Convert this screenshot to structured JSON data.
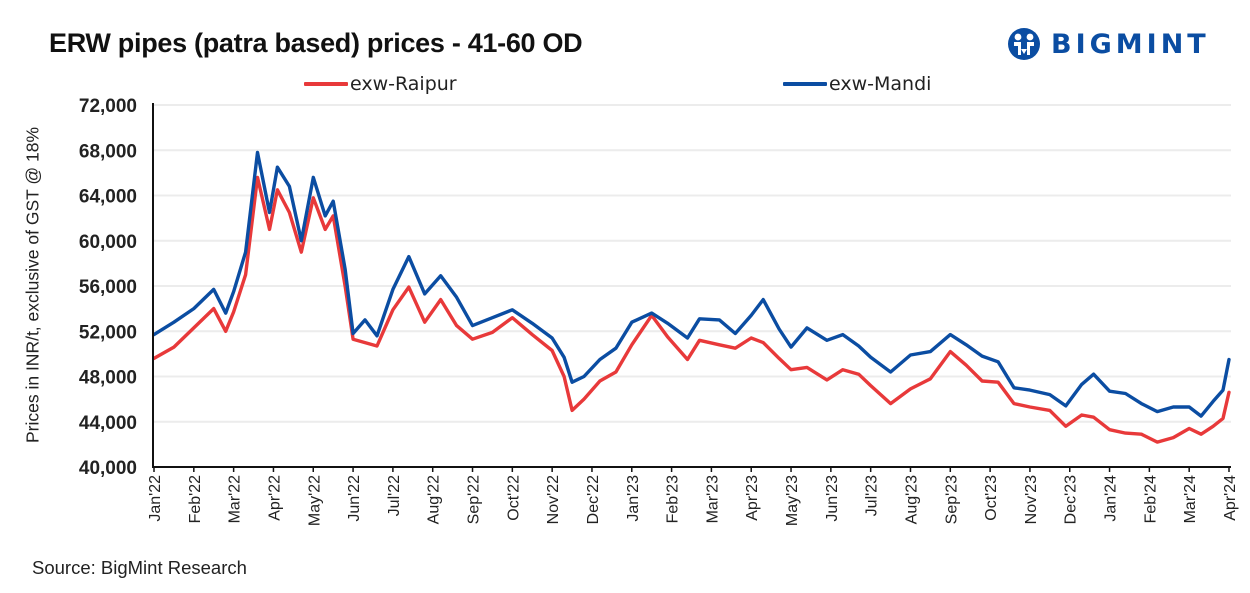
{
  "header": {
    "title": "ERW pipes (patra based) prices - 41-60 OD",
    "logo_text": "BIGMINT",
    "logo_color": "#0b4da2"
  },
  "footer": {
    "source": "Source: BigMint Research"
  },
  "chart_data": {
    "type": "line",
    "title": "ERW pipes (patra based) prices - 41-60 OD",
    "xlabel": "",
    "ylabel": "Prices in INR/t, exclusive of GST @ 18%",
    "ylim": [
      40000,
      72000
    ],
    "yticks": [
      40000,
      44000,
      48000,
      52000,
      56000,
      60000,
      64000,
      68000,
      72000
    ],
    "ytick_labels": [
      "40,000",
      "44,000",
      "48,000",
      "52,000",
      "56,000",
      "60,000",
      "64,000",
      "68,000",
      "72,000"
    ],
    "xlim_month_index": [
      0,
      27
    ],
    "x_unit": "months since Jan'22",
    "xtick_labels": [
      "Jan'22",
      "Feb'22",
      "Mar'22",
      "Apr'22",
      "May'22",
      "Jun'22",
      "Jul'22",
      "Aug'22",
      "Sep'22",
      "Oct'22",
      "Nov'22",
      "Dec'22",
      "Jan'23",
      "Feb'23",
      "Mar'23",
      "Apr'23",
      "May'23",
      "Jun'23",
      "Jul'23",
      "Aug'23",
      "Sep'23",
      "Oct'23",
      "Nov'23",
      "Dec'23",
      "Jan'24",
      "Feb'24",
      "Mar'24",
      "Apr'24"
    ],
    "grid": "horizontal",
    "legend_position": "top-center",
    "x": [
      0,
      0.5,
      1.0,
      1.5,
      1.8,
      2.0,
      2.3,
      2.6,
      2.9,
      3.1,
      3.4,
      3.7,
      4.0,
      4.3,
      4.5,
      4.8,
      5.0,
      5.3,
      5.6,
      6.0,
      6.4,
      6.8,
      7.2,
      7.6,
      8.0,
      8.5,
      9.0,
      9.5,
      10.0,
      10.3,
      10.5,
      10.8,
      11.2,
      11.6,
      12.0,
      12.5,
      12.9,
      13.4,
      13.7,
      14.2,
      14.6,
      15.0,
      15.3,
      15.7,
      16.0,
      16.4,
      16.9,
      17.3,
      17.7,
      18.0,
      18.5,
      19.0,
      19.5,
      20.0,
      20.4,
      20.8,
      21.2,
      21.6,
      22.0,
      22.5,
      22.9,
      23.3,
      23.6,
      24.0,
      24.4,
      24.8,
      25.2,
      25.6,
      26.0,
      26.3,
      26.6,
      26.85,
      27.0
    ],
    "series": [
      {
        "name": "exw-Raipur",
        "color": "#e8393a",
        "values": [
          49600,
          50600,
          52300,
          54000,
          52000,
          53700,
          57000,
          65600,
          61000,
          64500,
          62500,
          59000,
          63800,
          61000,
          62200,
          56000,
          51300,
          51000,
          50700,
          53900,
          55900,
          52800,
          54800,
          52500,
          51300,
          51900,
          53200,
          51700,
          50300,
          48000,
          45000,
          46000,
          47600,
          48400,
          50800,
          53400,
          51500,
          49500,
          51200,
          50800,
          50500,
          51400,
          51000,
          49600,
          48600,
          48800,
          47700,
          48600,
          48200,
          47200,
          45600,
          46900,
          47800,
          50200,
          49000,
          47600,
          47500,
          45600,
          45300,
          45000,
          43600,
          44600,
          44400,
          43300,
          43000,
          42900,
          42200,
          42600,
          43400,
          42900,
          43600,
          44300,
          46600
        ]
      },
      {
        "name": "exw-Mandi",
        "color": "#0b4da2",
        "values": [
          51700,
          52800,
          54000,
          55700,
          53600,
          55500,
          59000,
          67800,
          62500,
          66500,
          64800,
          60000,
          65600,
          62200,
          63500,
          57500,
          51800,
          53000,
          51600,
          55700,
          58600,
          55300,
          56900,
          55000,
          52500,
          53200,
          53900,
          52700,
          51400,
          49700,
          47500,
          48000,
          49500,
          50500,
          52800,
          53600,
          52700,
          51400,
          53100,
          53000,
          51800,
          53400,
          54800,
          52200,
          50600,
          52300,
          51200,
          51700,
          50700,
          49700,
          48400,
          49900,
          50200,
          51700,
          50800,
          49800,
          49300,
          47000,
          46800,
          46400,
          45400,
          47300,
          48200,
          46700,
          46500,
          45600,
          44900,
          45300,
          45300,
          44500,
          45800,
          46800,
          49500
        ]
      }
    ]
  }
}
